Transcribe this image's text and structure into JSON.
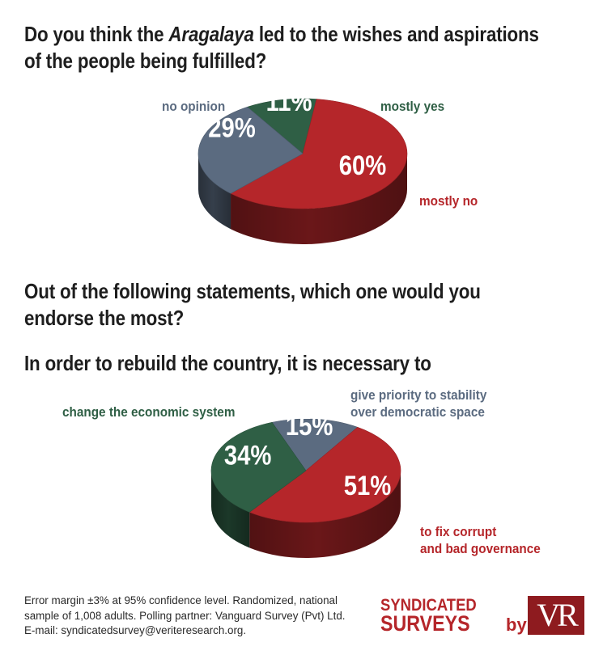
{
  "footer": {
    "line1": "Error margin ±3% at 95% confidence level. Randomized, national",
    "line2": "sample of 1,008 adults. Polling partner: Vanguard Survey (Pvt) Ltd.",
    "line3": "E-mail: syndicatedsurvey@veriteresearch.org."
  },
  "logo": {
    "line1": "SYNDICATED",
    "line2": "SURVEYS",
    "by": "by",
    "mark": "VR"
  },
  "chart_data": [
    {
      "type": "pie",
      "title_pre": "Do you think the ",
      "title_em": "Aragalaya",
      "title_post": " led to the wishes and aspirations",
      "title_line2": "of the people being fulfilled?",
      "slices": [
        {
          "label": "mostly yes",
          "value": 11,
          "display": "11%",
          "color": "#2f5f45"
        },
        {
          "label": "mostly no",
          "value": 60,
          "display": "60%",
          "color": "#b5262a"
        },
        {
          "label": "no opinion",
          "value": 29,
          "display": "29%",
          "color": "#5b6b80"
        }
      ]
    },
    {
      "type": "pie",
      "title_line1": "Out of the following statements, which one would you",
      "title_line2": "endorse the most?",
      "subtitle": "In order to rebuild the country, it is necessary to",
      "slices": [
        {
          "label": "give priority to stability over democratic space",
          "label_line1": "give priority to stability",
          "label_line2": "over democratic space",
          "value": 15,
          "display": "15%",
          "color": "#5b6b80"
        },
        {
          "label": "to fix corrupt and bad governance",
          "label_line1": "to fix corrupt",
          "label_line2": "and bad governance",
          "value": 51,
          "display": "51%",
          "color": "#b5262a"
        },
        {
          "label": "change the economic system",
          "value": 34,
          "display": "34%",
          "color": "#2f5f45"
        }
      ]
    }
  ]
}
